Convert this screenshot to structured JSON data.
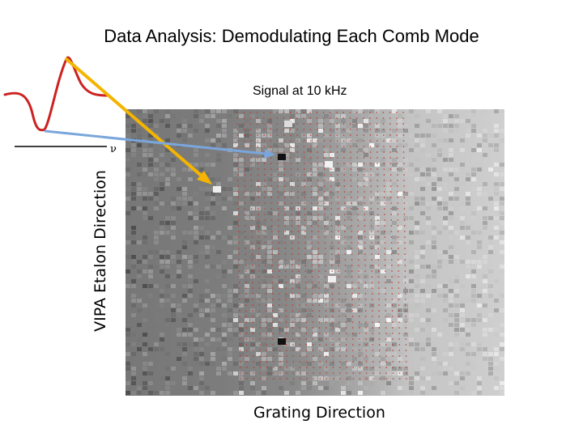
{
  "title": "Data Analysis: Demodulating Each Comb Mode",
  "signal_label": "Signal at 10 kHz",
  "nu_symbol": "ν",
  "y_axis_label": "VIPA Etalon Direction",
  "x_axis_label": "Grating Direction",
  "colors": {
    "waveform": "#cc2222",
    "arrow_orange": "#f4b400",
    "arrow_blue": "#7aa6dc",
    "grid_dots": "#c0392b",
    "axis_line": "#000000"
  }
}
